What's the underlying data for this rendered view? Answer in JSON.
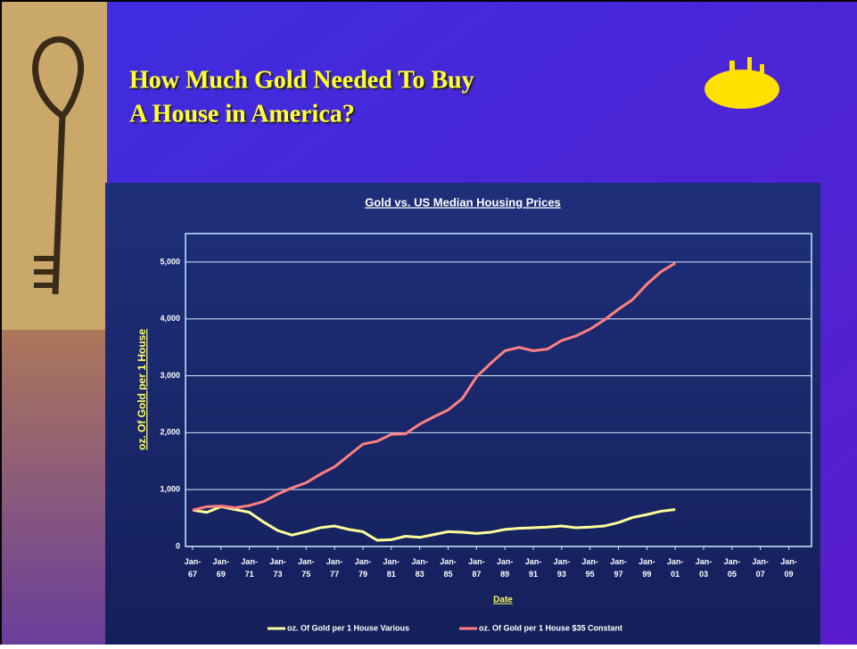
{
  "slide": {
    "title": [
      "How Much Gold Needed To Buy",
      "A House in America?"
    ]
  },
  "chart_data": {
    "type": "line",
    "title": "Gold vs. US Median Housing Prices",
    "x_label": "Date",
    "y_label": "oz. Of Gold per 1 House",
    "x": [
      1967,
      1968,
      1969,
      1970,
      1971,
      1972,
      1973,
      1974,
      1975,
      1976,
      1977,
      1978,
      1979,
      1980,
      1981,
      1982,
      1983,
      1984,
      1985,
      1986,
      1987,
      1988,
      1989,
      1990,
      1991,
      1992,
      1993,
      1994,
      1995,
      1996,
      1997,
      1998,
      1999,
      2000,
      2001
    ],
    "series": [
      {
        "name": "oz. Of Gold per 1 House Various",
        "color": "#ffff99",
        "values": [
          640,
          600,
          700,
          650,
          600,
          430,
          280,
          200,
          260,
          330,
          360,
          300,
          260,
          110,
          120,
          180,
          160,
          210,
          260,
          250,
          230,
          250,
          300,
          320,
          330,
          340,
          360,
          330,
          340,
          360,
          420,
          510,
          560,
          620,
          650
        ]
      },
      {
        "name": "oz. Of Gold per 1 House $35 Constant",
        "color": "#ff8080",
        "values": [
          640,
          700,
          710,
          680,
          720,
          790,
          920,
          1030,
          1120,
          1270,
          1400,
          1600,
          1800,
          1850,
          1970,
          1980,
          2150,
          2280,
          2400,
          2600,
          2980,
          3220,
          3440,
          3500,
          3440,
          3470,
          3620,
          3700,
          3820,
          3980,
          4170,
          4340,
          4610,
          4830,
          4980
        ]
      }
    ],
    "xlim": [
      1966.5,
      2010.6
    ],
    "xticks": [
      {
        "value": 1967,
        "label": "Jan-67"
      },
      {
        "value": 1969,
        "label": "Jan-69"
      },
      {
        "value": 1971,
        "label": "Jan-71"
      },
      {
        "value": 1973,
        "label": "Jan-73"
      },
      {
        "value": 1975,
        "label": "Jan-75"
      },
      {
        "value": 1977,
        "label": "Jan-77"
      },
      {
        "value": 1979,
        "label": "Jan-79"
      },
      {
        "value": 1981,
        "label": "Jan-81"
      },
      {
        "value": 1983,
        "label": "Jan-83"
      },
      {
        "value": 1985,
        "label": "Jan-85"
      },
      {
        "value": 1987,
        "label": "Jan-87"
      },
      {
        "value": 1989,
        "label": "Jan-89"
      },
      {
        "value": 1991,
        "label": "Jan-91"
      },
      {
        "value": 1993,
        "label": "Jan-93"
      },
      {
        "value": 1995,
        "label": "Jan-95"
      },
      {
        "value": 1997,
        "label": "Jan-97"
      },
      {
        "value": 1999,
        "label": "Jan-99"
      },
      {
        "value": 2001,
        "label": "Jan-01"
      },
      {
        "value": 2003,
        "label": "Jan-03"
      },
      {
        "value": 2005,
        "label": "Jan-05"
      },
      {
        "value": 2007,
        "label": "Jan-07"
      },
      {
        "value": 2009,
        "label": "Jan-09"
      }
    ],
    "ylim": [
      0,
      5500
    ],
    "yticks": [
      0,
      {
        "value": 1000,
        "label": "1,000"
      },
      {
        "value": 2000,
        "label": "2,000"
      },
      {
        "value": 3000,
        "label": "3,000"
      },
      {
        "value": 4000,
        "label": "4,000"
      },
      {
        "value": 5000,
        "label": "5,000"
      }
    ],
    "grid": true,
    "legend": "bottom"
  }
}
